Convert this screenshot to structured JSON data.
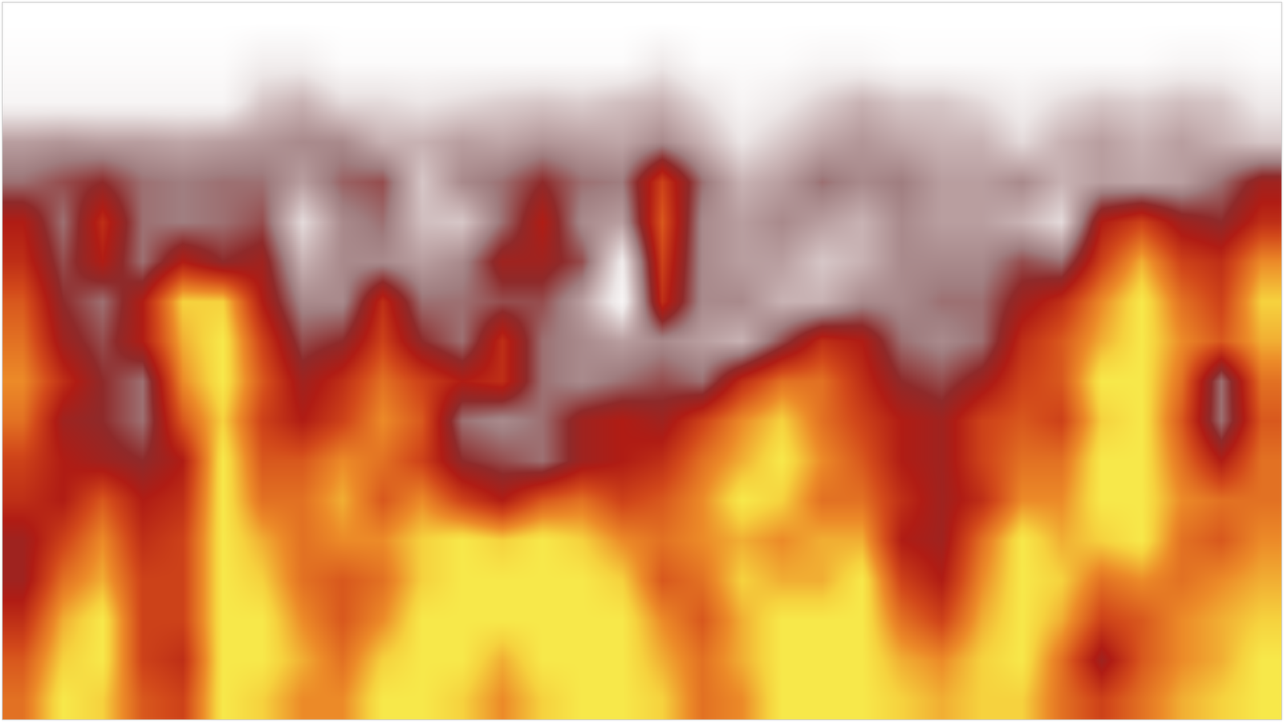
{
  "chart_data": {
    "type": "heatmap",
    "tick_labels": false,
    "grid": false,
    "zlim": [
      0,
      100
    ],
    "cells": [
      [
        0,
        0,
        0,
        0,
        0,
        0,
        0,
        0,
        0,
        0,
        0,
        0,
        0,
        0,
        0,
        0,
        0,
        0,
        0,
        0,
        0,
        0,
        0,
        0,
        0,
        0,
        0,
        0,
        0,
        0,
        0,
        0
      ],
      [
        2,
        2,
        2,
        2,
        2,
        2,
        8,
        8,
        2,
        2,
        2,
        2,
        2,
        2,
        2,
        2,
        10,
        2,
        2,
        2,
        5,
        5,
        2,
        2,
        2,
        2,
        2,
        2,
        2,
        5,
        5,
        2
      ],
      [
        5,
        5,
        5,
        5,
        5,
        5,
        20,
        25,
        15,
        15,
        12,
        15,
        18,
        20,
        18,
        22,
        25,
        15,
        5,
        10,
        18,
        25,
        20,
        20,
        15,
        8,
        15,
        20,
        18,
        22,
        20,
        10
      ],
      [
        30,
        32,
        30,
        30,
        28,
        30,
        32,
        35,
        35,
        25,
        25,
        30,
        28,
        32,
        30,
        28,
        35,
        25,
        12,
        20,
        28,
        32,
        28,
        25,
        25,
        15,
        25,
        30,
        25,
        30,
        25,
        20
      ],
      [
        40,
        45,
        50,
        40,
        38,
        40,
        40,
        30,
        42,
        45,
        20,
        35,
        40,
        50,
        40,
        38,
        70,
        40,
        25,
        30,
        40,
        35,
        38,
        30,
        30,
        35,
        25,
        30,
        28,
        30,
        40,
        55
      ],
      [
        60,
        40,
        65,
        40,
        38,
        40,
        45,
        15,
        35,
        40,
        22,
        20,
        40,
        60,
        35,
        30,
        75,
        35,
        30,
        35,
        30,
        25,
        35,
        30,
        30,
        25,
        15,
        60,
        70,
        55,
        50,
        65
      ],
      [
        65,
        45,
        60,
        40,
        60,
        50,
        55,
        25,
        35,
        35,
        30,
        35,
        55,
        55,
        45,
        10,
        70,
        35,
        30,
        30,
        20,
        25,
        35,
        35,
        35,
        45,
        40,
        70,
        90,
        70,
        65,
        85
      ],
      [
        75,
        50,
        40,
        60,
        95,
        95,
        60,
        35,
        35,
        65,
        40,
        40,
        45,
        45,
        30,
        5,
        65,
        35,
        35,
        25,
        25,
        35,
        35,
        40,
        40,
        55,
        65,
        85,
        100,
        80,
        70,
        95
      ],
      [
        80,
        55,
        45,
        60,
        90,
        100,
        70,
        45,
        50,
        70,
        50,
        40,
        65,
        40,
        35,
        30,
        35,
        30,
        25,
        45,
        65,
        60,
        40,
        35,
        40,
        65,
        75,
        90,
        100,
        85,
        75,
        90
      ],
      [
        85,
        65,
        50,
        40,
        85,
        100,
        75,
        55,
        65,
        80,
        70,
        60,
        65,
        40,
        35,
        40,
        45,
        40,
        65,
        80,
        80,
        65,
        50,
        45,
        55,
        70,
        75,
        100,
        100,
        80,
        40,
        80
      ],
      [
        80,
        55,
        50,
        40,
        75,
        95,
        70,
        60,
        70,
        85,
        75,
        40,
        35,
        40,
        55,
        60,
        55,
        70,
        85,
        95,
        80,
        70,
        60,
        55,
        70,
        75,
        70,
        95,
        100,
        75,
        40,
        75
      ],
      [
        70,
        60,
        55,
        50,
        60,
        100,
        75,
        75,
        85,
        80,
        70,
        50,
        45,
        40,
        55,
        60,
        65,
        80,
        90,
        100,
        85,
        75,
        60,
        55,
        70,
        80,
        80,
        100,
        100,
        80,
        60,
        80
      ],
      [
        65,
        60,
        75,
        60,
        65,
        100,
        80,
        80,
        90,
        75,
        85,
        70,
        60,
        75,
        80,
        70,
        75,
        85,
        100,
        95,
        80,
        80,
        65,
        55,
        65,
        85,
        85,
        100,
        100,
        85,
        80,
        80
      ],
      [
        55,
        70,
        85,
        65,
        70,
        100,
        90,
        80,
        85,
        85,
        95,
        100,
        95,
        100,
        95,
        85,
        80,
        85,
        90,
        85,
        90,
        90,
        60,
        55,
        80,
        100,
        90,
        95,
        100,
        80,
        75,
        85
      ],
      [
        55,
        80,
        90,
        70,
        70,
        100,
        95,
        80,
        75,
        80,
        95,
        100,
        100,
        100,
        100,
        95,
        75,
        80,
        95,
        90,
        90,
        100,
        70,
        60,
        85,
        100,
        95,
        80,
        85,
        80,
        85,
        90
      ],
      [
        65,
        90,
        100,
        70,
        70,
        100,
        100,
        85,
        75,
        85,
        100,
        100,
        100,
        100,
        100,
        100,
        85,
        75,
        90,
        100,
        100,
        100,
        80,
        70,
        90,
        100,
        90,
        70,
        75,
        85,
        90,
        95
      ],
      [
        75,
        95,
        100,
        70,
        65,
        100,
        100,
        90,
        80,
        95,
        100,
        100,
        90,
        100,
        100,
        100,
        90,
        80,
        90,
        100,
        100,
        100,
        90,
        85,
        95,
        100,
        80,
        55,
        75,
        85,
        90,
        100
      ],
      [
        80,
        100,
        95,
        75,
        70,
        100,
        95,
        85,
        85,
        100,
        100,
        95,
        85,
        95,
        100,
        100,
        95,
        80,
        85,
        100,
        100,
        100,
        95,
        90,
        95,
        95,
        80,
        70,
        80,
        90,
        95,
        100
      ]
    ]
  }
}
